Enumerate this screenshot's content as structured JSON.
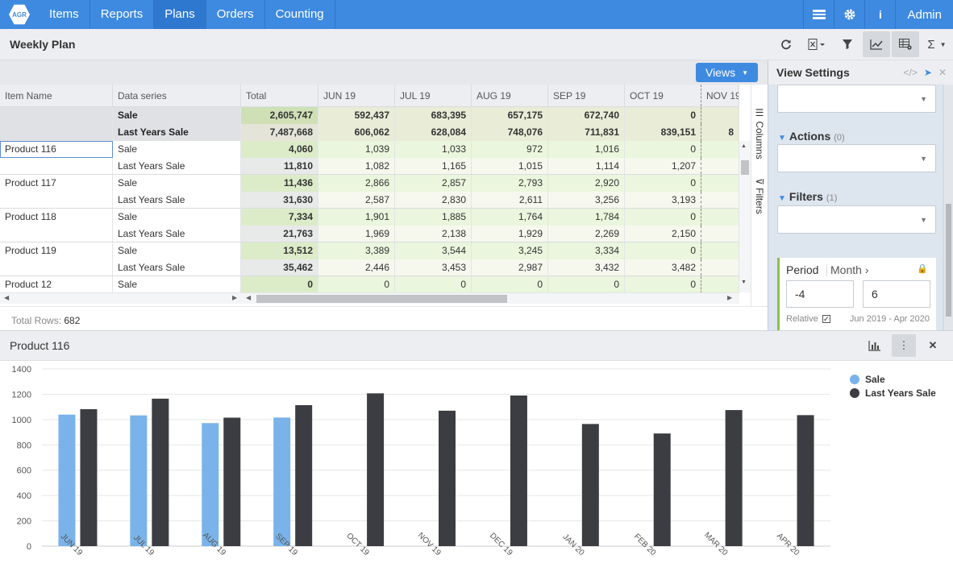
{
  "nav": {
    "logo": "AGR",
    "items": [
      "Items",
      "Reports",
      "Plans",
      "Orders",
      "Counting"
    ],
    "active": "Plans",
    "user": "Admin"
  },
  "page": {
    "title": "Weekly Plan"
  },
  "toolbar": {
    "views_label": "Views"
  },
  "grid": {
    "headers": [
      "Item Name",
      "Data series",
      "Total",
      "JUN 19",
      "JUL 19",
      "AUG 19",
      "SEP 19",
      "OCT 19",
      "NOV 19"
    ],
    "total_rows": [
      {
        "series": "Sale",
        "total": "2,605,747",
        "months": [
          "592,437",
          "683,395",
          "657,175",
          "672,740",
          "0",
          ""
        ]
      },
      {
        "series": "Last Years Sale",
        "total": "7,487,668",
        "months": [
          "606,062",
          "628,084",
          "748,076",
          "711,831",
          "839,151",
          "8"
        ]
      }
    ],
    "rows": [
      {
        "item": "Product 116",
        "series": "Sale",
        "total": "4,060",
        "months": [
          "1,039",
          "1,033",
          "972",
          "1,016",
          "0",
          ""
        ]
      },
      {
        "item": "",
        "series": "Last Years Sale",
        "total": "11,810",
        "months": [
          "1,082",
          "1,165",
          "1,015",
          "1,114",
          "1,207",
          ""
        ]
      },
      {
        "item": "Product 117",
        "series": "Sale",
        "total": "11,436",
        "months": [
          "2,866",
          "2,857",
          "2,793",
          "2,920",
          "0",
          ""
        ]
      },
      {
        "item": "",
        "series": "Last Years Sale",
        "total": "31,630",
        "months": [
          "2,587",
          "2,830",
          "2,611",
          "3,256",
          "3,193",
          ""
        ]
      },
      {
        "item": "Product 118",
        "series": "Sale",
        "total": "7,334",
        "months": [
          "1,901",
          "1,885",
          "1,764",
          "1,784",
          "0",
          ""
        ]
      },
      {
        "item": "",
        "series": "Last Years Sale",
        "total": "21,763",
        "months": [
          "1,969",
          "2,138",
          "1,929",
          "2,269",
          "2,150",
          ""
        ]
      },
      {
        "item": "Product 119",
        "series": "Sale",
        "total": "13,512",
        "months": [
          "3,389",
          "3,544",
          "3,245",
          "3,334",
          "0",
          ""
        ]
      },
      {
        "item": "",
        "series": "Last Years Sale",
        "total": "35,462",
        "months": [
          "2,446",
          "3,453",
          "2,987",
          "3,432",
          "3,482",
          ""
        ]
      },
      {
        "item": "Product 12",
        "series": "Sale",
        "total": "0",
        "months": [
          "0",
          "0",
          "0",
          "0",
          "0",
          ""
        ]
      }
    ],
    "side_tabs": [
      "Columns",
      "Filters"
    ],
    "total_rows_label": "Total Rows:",
    "total_rows_count": "682"
  },
  "view_settings": {
    "title": "View Settings",
    "actions_label": "Actions",
    "actions_count": "(0)",
    "filters_label": "Filters",
    "filters_count": "(1)",
    "period_label": "Period",
    "period_unit": "Month",
    "from_value": "-4",
    "to_value": "6",
    "relative_label": "Relative",
    "range_text": "Jun 2019 - Apr 2020"
  },
  "chart_panel": {
    "title": "Product 116"
  },
  "chart_data": {
    "type": "bar",
    "categories": [
      "JUN 19",
      "JUL 19",
      "AUG 19",
      "SEP 19",
      "OCT 19",
      "NOV 19",
      "DEC 19",
      "JAN 20",
      "FEB 20",
      "MAR 20",
      "APR 20"
    ],
    "series": [
      {
        "name": "Sale",
        "color": "#7ab3ea",
        "values": [
          1039,
          1033,
          972,
          1016,
          null,
          null,
          null,
          null,
          null,
          null,
          null
        ]
      },
      {
        "name": "Last Years Sale",
        "color": "#3b3d42",
        "values": [
          1082,
          1165,
          1015,
          1114,
          1207,
          1070,
          1190,
          965,
          890,
          1075,
          1035
        ]
      }
    ],
    "ylim": [
      0,
      1400
    ],
    "yticks": [
      0,
      200,
      400,
      600,
      800,
      1000,
      1200,
      1400
    ],
    "legend": "top-right",
    "grid": true
  }
}
